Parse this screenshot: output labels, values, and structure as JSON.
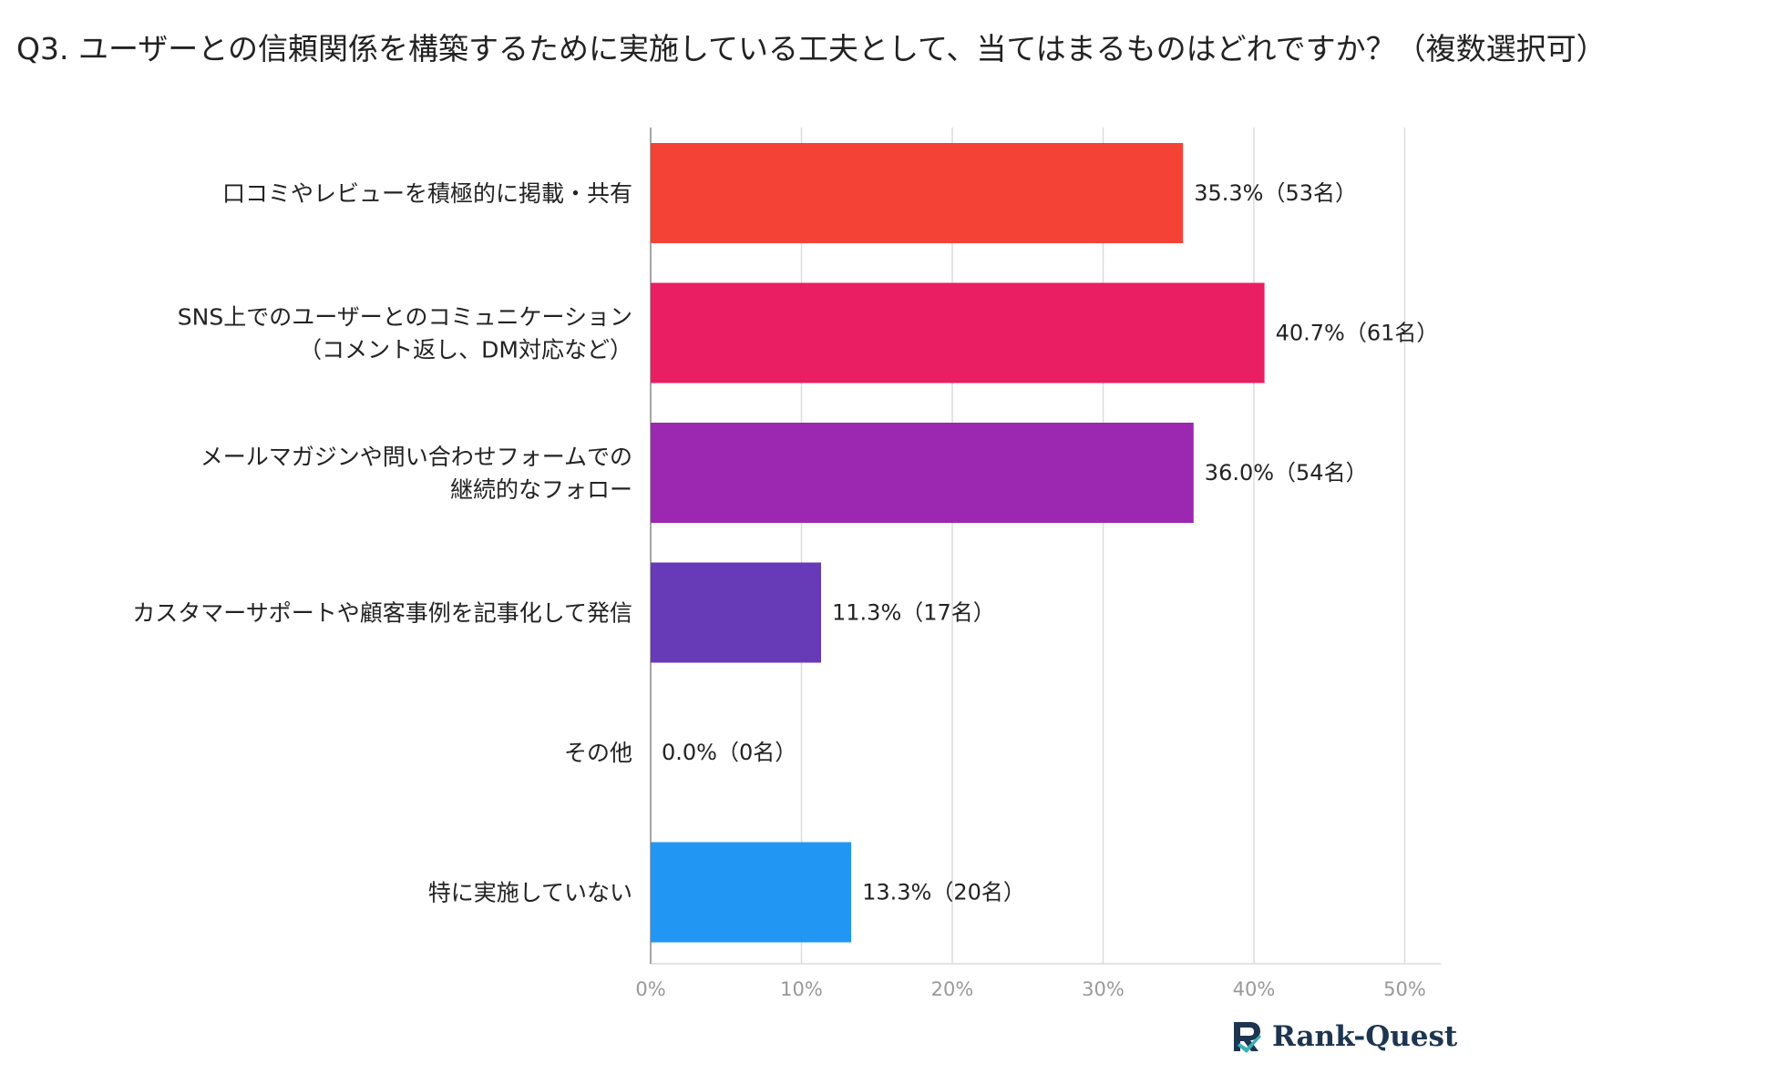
{
  "chart_data": {
    "type": "bar",
    "orientation": "horizontal",
    "title": "Q3. ユーザーとの信頼関係を構築するために実施している工夫として、当てはまるものはどれですか？（複数選択可）",
    "categories": [
      [
        "口コミやレビューを積極的に掲載・共有"
      ],
      [
        "SNS上でのユーザーとのコミュニケーション",
        "（コメント返し、DM対応など）"
      ],
      [
        "メールマガジンや問い合わせフォームでの",
        "継続的なフォロー"
      ],
      [
        "カスタマーサポートや顧客事例を記事化して発信"
      ],
      [
        "その他"
      ],
      [
        "特に実施していない"
      ]
    ],
    "values": [
      35.3,
      40.7,
      36.0,
      11.3,
      0.0,
      13.3
    ],
    "value_labels": [
      "35.3%（53名）",
      "40.7%（61名）",
      "36.0%（54名）",
      "11.3%（17名）",
      "0.0%（0名）",
      "13.3%（20名）"
    ],
    "colors": [
      "#f44336",
      "#e91e63",
      "#9c27b0",
      "#673ab7",
      "#9e9e9e",
      "#2196f3"
    ],
    "xlim": [
      0,
      50
    ],
    "xticks": [
      0,
      10,
      20,
      30,
      40,
      50
    ],
    "xtick_labels": [
      "0%",
      "10%",
      "20%",
      "30%",
      "40%",
      "50%"
    ],
    "grid": true,
    "xlabel": "",
    "ylabel": ""
  },
  "brand": {
    "name": "Rank-Quest",
    "icon": "rank-quest-logo-icon",
    "colors": {
      "dark": "#1d3550",
      "accent": "#3ab0b8"
    }
  }
}
